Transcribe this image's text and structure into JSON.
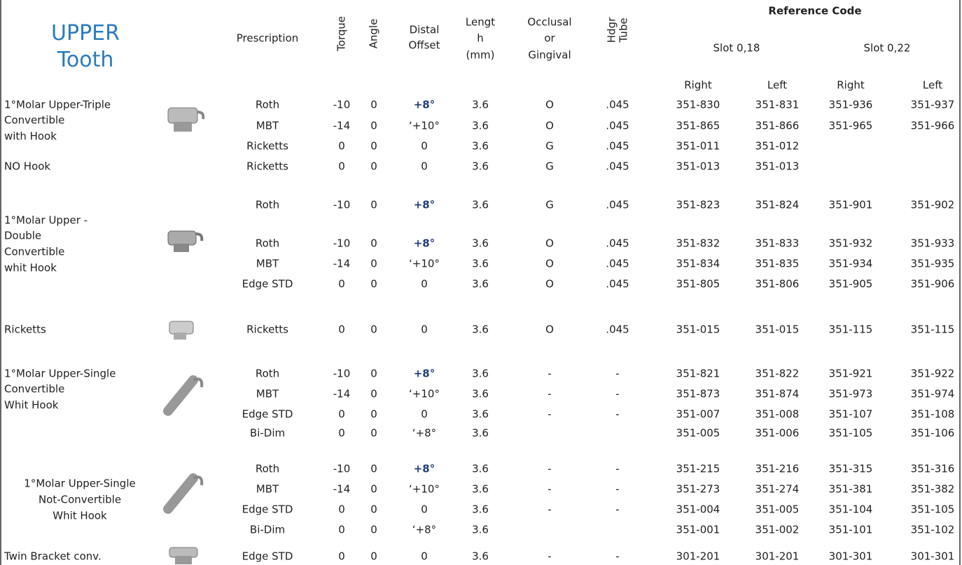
{
  "header": {
    "title_lines": [
      "UPPER",
      "Tooth"
    ],
    "prescription": "Prescription",
    "torque": "Torque",
    "angle": "Angle",
    "distal_offset": [
      "Distal",
      "Offset"
    ],
    "length": [
      "Lengt",
      "h",
      "(mm)"
    ],
    "occlusal": [
      "Occlusal",
      "or",
      "Gingival"
    ],
    "hdgr_tube": [
      "Hdgr",
      "Tube"
    ],
    "reference_code": "Reference Code",
    "slot_018": "Slot 0,18",
    "slot_022": "Slot 0,22",
    "sides": [
      "Right",
      "Left",
      "Right",
      "Left"
    ]
  },
  "groups": [
    {
      "lines": [
        "1°Molar Upper-Triple",
        "Convertible",
        "with Hook"
      ]
    },
    {
      "lines": [
        "NO Hook"
      ]
    },
    {
      "lines": [
        "1°Molar Upper -",
        "Double",
        "Convertible",
        "whit Hook"
      ]
    },
    {
      "lines": [
        "Ricketts"
      ]
    },
    {
      "lines": [
        "1°Molar Upper-Single",
        "Convertible",
        "Whit Hook"
      ]
    },
    {
      "lines": [
        "1°Molar Upper-Single",
        "Not-Convertible",
        "Whit Hook"
      ]
    },
    {
      "lines": [
        "Twin Bracket conv."
      ]
    }
  ],
  "rows": [
    [
      "Roth",
      "-10",
      "0",
      "+8°",
      "3.6",
      "O",
      ".045",
      "351-830",
      "351-831",
      "351-936",
      "351-937"
    ],
    [
      "MBT",
      "-14",
      "0",
      "‘+10°",
      "3.6",
      "O",
      ".045",
      "351-865",
      "351-866",
      "351-965",
      "351-966"
    ],
    [
      "Ricketts",
      "0",
      "0",
      "0",
      "3.6",
      "G",
      ".045",
      "351-011",
      "351-012",
      null,
      null
    ],
    [
      "Ricketts",
      "0",
      "0",
      "0",
      "3.6",
      "G",
      ".045",
      "351-013",
      "351-013",
      null,
      null
    ],
    [
      "Roth",
      "-10",
      "0",
      "+8°",
      "3.6",
      "G",
      ".045",
      "351-823",
      "351-824",
      "351-901",
      "351-902"
    ],
    [
      "Roth",
      "-10",
      "0",
      "+8°",
      "3.6",
      "O",
      ".045",
      "351-832",
      "351-833",
      "351-932",
      "351-933"
    ],
    [
      "MBT",
      "-14",
      "0",
      "‘+10°",
      "3.6",
      "O",
      ".045",
      "351-834",
      "351-835",
      "351-934",
      "351-935"
    ],
    [
      "Edge STD",
      "0",
      "0",
      "0",
      "3.6",
      "O",
      ".045",
      "351-805",
      "351-806",
      "351-905",
      "351-906"
    ],
    [
      "Ricketts",
      "0",
      "0",
      "0",
      "3.6",
      "O",
      ".045",
      "351-015",
      "351-015",
      "351-115",
      "351-115"
    ],
    [
      "Roth",
      "-10",
      "0",
      "+8°",
      "3.6",
      "-",
      "-",
      "351-821",
      "351-822",
      "351-921",
      "351-922"
    ],
    [
      "MBT",
      "-14",
      "0",
      "‘+10°",
      "3.6",
      "-",
      "-",
      "351-873",
      "351-874",
      "351-973",
      "351-974"
    ],
    [
      "Edge STD",
      "0",
      "0",
      "0",
      "3.6",
      "-",
      "-",
      "351-007",
      "351-008",
      "351-107",
      "351-108"
    ],
    [
      "Bi-Dim",
      "0",
      "0",
      "‘+8°",
      "3.6",
      null,
      null,
      "351-005",
      "351-006",
      "351-105",
      "351-106"
    ],
    [
      "Roth",
      "-10",
      "0",
      "+8°",
      "3.6",
      "-",
      "-",
      "351-215",
      "351-216",
      "351-315",
      "351-316"
    ],
    [
      "MBT",
      "-14",
      "0",
      "‘+10°",
      "3.6",
      "-",
      "-",
      "351-273",
      "351-274",
      "351-381",
      "351-382"
    ],
    [
      "Edge STD",
      "0",
      "0",
      "0",
      "3.6",
      "-",
      "-",
      "351-004",
      "351-005",
      "351-104",
      "351-105"
    ],
    [
      "Bi-Dim",
      "0",
      "0",
      "‘+8°",
      "3.6",
      null,
      null,
      "351-001",
      "351-002",
      "351-101",
      "351-102"
    ],
    [
      "Edge STD",
      "0",
      "0",
      "0",
      "3.6",
      "-",
      "-",
      "301-201",
      "301-201",
      "301-301",
      "301-301"
    ]
  ]
}
